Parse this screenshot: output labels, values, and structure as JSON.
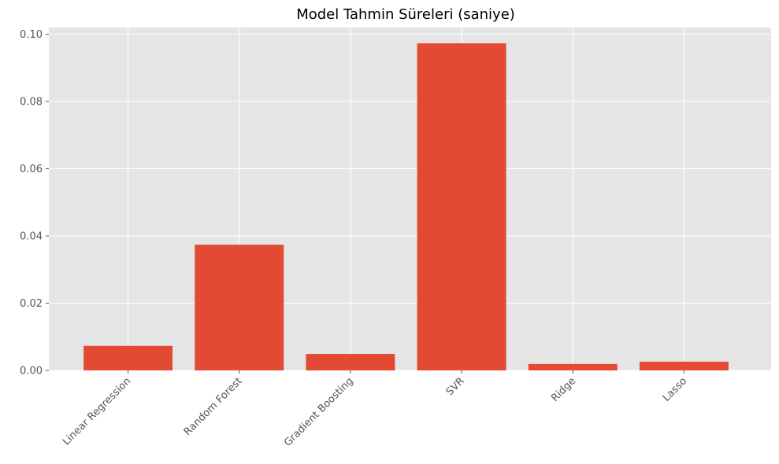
{
  "chart_data": {
    "type": "bar",
    "title": "Model Tahmin Süreleri (saniye)",
    "xlabel": "",
    "ylabel": "",
    "categories": [
      "Linear Regression",
      "Random Forest",
      "Gradient Boosting",
      "SVR",
      "Ridge",
      "Lasso"
    ],
    "values": [
      0.0073,
      0.0374,
      0.0049,
      0.0973,
      0.0019,
      0.0026
    ],
    "ylim": [
      0,
      0.1
    ],
    "yticks": [
      0.0,
      0.02,
      0.04,
      0.06,
      0.08,
      0.1
    ],
    "ytick_labels": [
      "0.00",
      "0.02",
      "0.04",
      "0.06",
      "0.08",
      "0.10"
    ],
    "xtick_rotation_deg": 45,
    "grid": true,
    "legend": "none",
    "colors": {
      "bar": "#E24A33",
      "plot_background": "#E5E5E5",
      "grid": "#FFFFFF",
      "tick_text": "#555555",
      "title_text": "#000000"
    }
  }
}
